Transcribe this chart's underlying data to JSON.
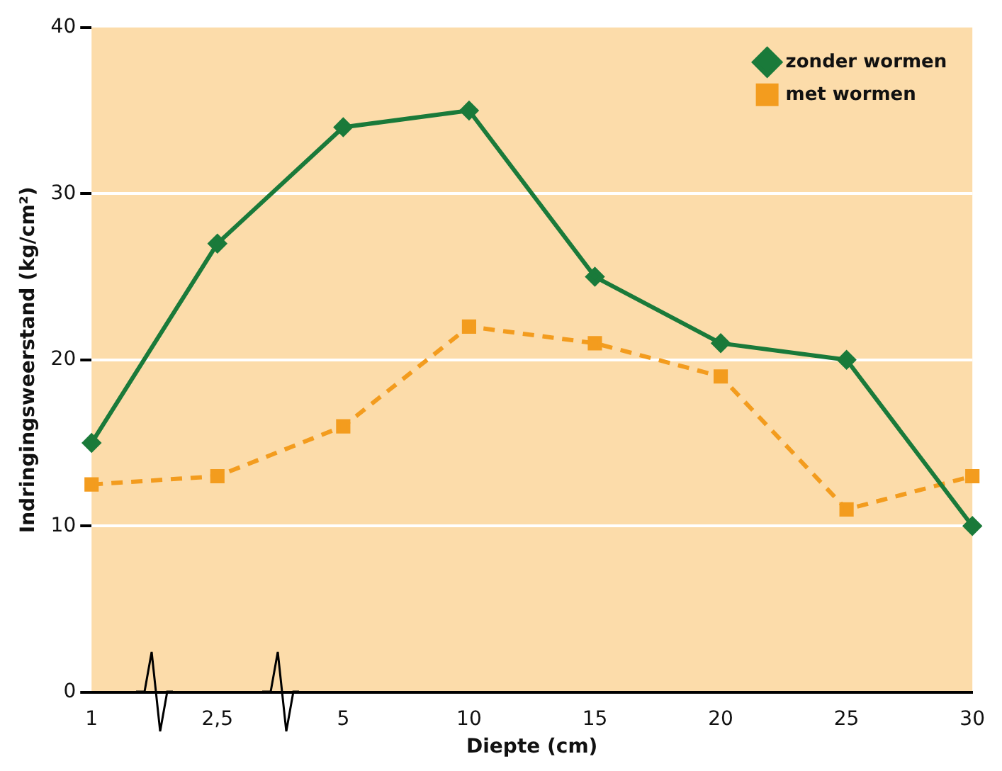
{
  "chart_data": {
    "type": "line",
    "xlabel": "Diepte (cm)",
    "ylabel": "Indringingsweerstand (kg/cm²)",
    "categories": [
      "1",
      "2,5",
      "5",
      "10",
      "15",
      "20",
      "25",
      "30"
    ],
    "series": [
      {
        "name": "zonder wormen",
        "color": "#1a7a3a",
        "values": [
          15,
          27,
          34,
          35,
          25,
          21,
          20,
          10
        ],
        "marker": "diamond",
        "line_style": "solid"
      },
      {
        "name": "met wormen",
        "color": "#f39c1e",
        "values": [
          12.5,
          13,
          16,
          22,
          21,
          19,
          11,
          13
        ],
        "marker": "square",
        "line_style": "dashed"
      }
    ],
    "ylim": [
      0,
      40
    ],
    "yticks": [
      0,
      10,
      20,
      30,
      40
    ],
    "grid": "y",
    "legend": "top right"
  }
}
